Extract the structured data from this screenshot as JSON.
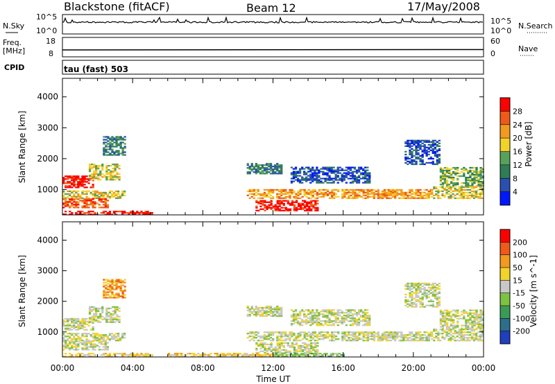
{
  "header": {
    "title_left": "Blackstone (fitACF)",
    "title_center": "Beam 12",
    "title_right": "17/May/2008"
  },
  "top_panels": {
    "nsky_label": "N.Sky",
    "nsky_ticks": [
      "10^5",
      "10^0"
    ],
    "nsearch_label": "N.Search",
    "nsearch_ticks": [
      "10^5",
      "10^0"
    ],
    "freq_label_1": "Freq.",
    "freq_label_2": "[MHz]",
    "freq_ticks": [
      "18",
      "8"
    ],
    "nave_label": "Nave",
    "nave_ticks": [
      "60",
      "0"
    ],
    "cpid_label": "CPID",
    "cpid_value": "tau (fast) 503"
  },
  "chart_data": [
    {
      "type": "heatmap",
      "name": "power",
      "ylabel": "Slant Range [km]",
      "y_ticks": [
        "4000",
        "3000",
        "2000",
        "1000"
      ],
      "y_tick_values": [
        4000,
        3000,
        2000,
        1000
      ],
      "ylim": [
        180,
        4600
      ],
      "xlim_hours": [
        0,
        24
      ],
      "colorbar": {
        "label": "Power [dB]",
        "ticks": [
          "28",
          "24",
          "20",
          "16",
          "12",
          "8",
          "4"
        ],
        "colors": [
          "#0018ff",
          "#2a4fb0",
          "#2e7d56",
          "#58a15a",
          "#f2d32a",
          "#f29a1e",
          "#ee5a1a",
          "#ff0000"
        ]
      },
      "echo_regions": [
        {
          "t0": 0.0,
          "t1": 1.7,
          "r0": 1050,
          "r1": 1450,
          "level": 7
        },
        {
          "t0": 1.5,
          "t1": 3.2,
          "r0": 1300,
          "r1": 1800,
          "level": 4
        },
        {
          "t0": 2.3,
          "t1": 3.6,
          "r0": 2100,
          "r1": 2700,
          "level": 2
        },
        {
          "t0": 0.0,
          "t1": 3.5,
          "r0": 700,
          "r1": 950,
          "level": 4
        },
        {
          "t0": 0.0,
          "t1": 2.6,
          "r0": 400,
          "r1": 700,
          "level": 6
        },
        {
          "t0": 0.0,
          "t1": 5.1,
          "r0": 180,
          "r1": 300,
          "level": 7
        },
        {
          "t0": 10.5,
          "t1": 21.0,
          "r0": 700,
          "r1": 1000,
          "level": 5
        },
        {
          "t0": 11.0,
          "t1": 14.5,
          "r0": 300,
          "r1": 650,
          "level": 7
        },
        {
          "t0": 10.5,
          "t1": 12.5,
          "r0": 1500,
          "r1": 1850,
          "level": 2
        },
        {
          "t0": 13.0,
          "t1": 17.5,
          "r0": 1200,
          "r1": 1700,
          "level": 1
        },
        {
          "t0": 21.5,
          "t1": 24.0,
          "r0": 1100,
          "r1": 1700,
          "level": 3
        },
        {
          "t0": 19.5,
          "t1": 21.5,
          "r0": 1800,
          "r1": 2600,
          "level": 1
        },
        {
          "t0": 21.0,
          "t1": 24.0,
          "r0": 700,
          "r1": 1100,
          "level": 4
        }
      ]
    },
    {
      "type": "heatmap",
      "name": "velocity",
      "ylabel": "Slant Range [km]",
      "xlabel": "Time UT",
      "x_ticks": [
        "00:00",
        "04:00",
        "08:00",
        "12:00",
        "16:00",
        "20:00",
        "00:00"
      ],
      "x_tick_hours": [
        0,
        4,
        8,
        12,
        16,
        20,
        24
      ],
      "y_ticks": [
        "4000",
        "3000",
        "2000",
        "1000"
      ],
      "y_tick_values": [
        4000,
        3000,
        2000,
        1000
      ],
      "ylim": [
        180,
        4600
      ],
      "xlim_hours": [
        0,
        24
      ],
      "colorbar": {
        "label": "Velocity [m s^-1]",
        "ticks": [
          "200",
          "100",
          "50",
          "15",
          "-15",
          "-50",
          "-100",
          "-200"
        ],
        "colors": [
          "#1f3fbf",
          "#2c6e8c",
          "#3c9a57",
          "#7ec242",
          "#c8c8c8",
          "#f2d32a",
          "#f29a1e",
          "#ee5a1a",
          "#ff0000"
        ]
      },
      "echo_regions": [
        {
          "t0": 0.0,
          "t1": 1.7,
          "r0": 1050,
          "r1": 1450,
          "level": 4
        },
        {
          "t0": 1.5,
          "t1": 3.2,
          "r0": 1300,
          "r1": 1800,
          "level": 4
        },
        {
          "t0": 2.3,
          "t1": 3.6,
          "r0": 2100,
          "r1": 2700,
          "level": 6
        },
        {
          "t0": 0.0,
          "t1": 3.5,
          "r0": 700,
          "r1": 950,
          "level": 4
        },
        {
          "t0": 0.0,
          "t1": 2.6,
          "r0": 400,
          "r1": 700,
          "level": 4
        },
        {
          "t0": 0.0,
          "t1": 5.1,
          "r0": 180,
          "r1": 300,
          "level": 5
        },
        {
          "t0": 10.5,
          "t1": 21.0,
          "r0": 700,
          "r1": 1000,
          "level": 4
        },
        {
          "t0": 11.0,
          "t1": 14.5,
          "r0": 300,
          "r1": 650,
          "level": 4
        },
        {
          "t0": 10.5,
          "t1": 12.5,
          "r0": 1500,
          "r1": 1850,
          "level": 4
        },
        {
          "t0": 13.0,
          "t1": 17.5,
          "r0": 1200,
          "r1": 1700,
          "level": 4
        },
        {
          "t0": 21.5,
          "t1": 24.0,
          "r0": 1100,
          "r1": 1700,
          "level": 4
        },
        {
          "t0": 19.5,
          "t1": 21.5,
          "r0": 1800,
          "r1": 2600,
          "level": 4
        },
        {
          "t0": 21.0,
          "t1": 24.0,
          "r0": 700,
          "r1": 1100,
          "level": 4
        },
        {
          "t0": 6.0,
          "t1": 12.0,
          "r0": 180,
          "r1": 280,
          "level": 5
        },
        {
          "t0": 12.0,
          "t1": 16.0,
          "r0": 180,
          "r1": 280,
          "level": 3
        }
      ]
    }
  ]
}
